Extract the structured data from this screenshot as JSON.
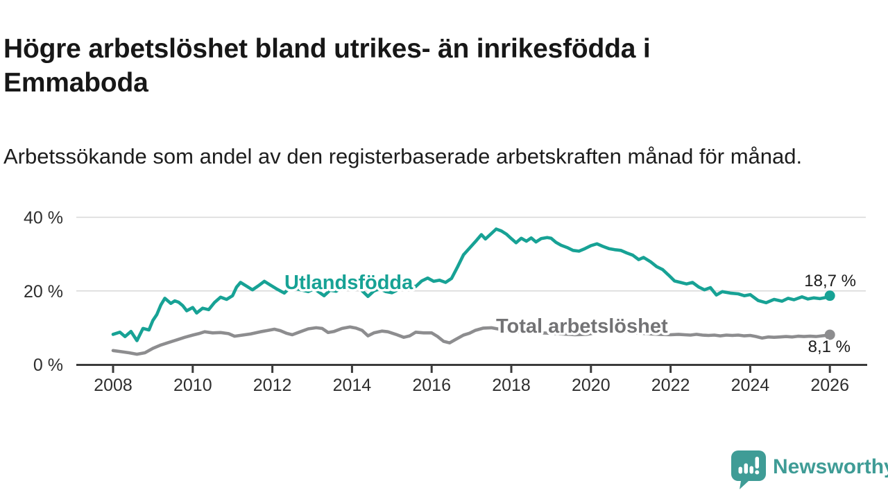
{
  "header": {
    "title": "Högre arbetslöshet bland utrikes- än inrikesfödda i Emmaboda",
    "subtitle": "Arbetssökande som andel av den registerbaserade arbetskraften månad för månad."
  },
  "branding": {
    "logo_text": "Newsworthy",
    "logo_color": "#3F9C96",
    "logo_mark": "speech-bubble-bar-chart-icon"
  },
  "colors": {
    "axis": "#3B3B3B",
    "grid": "#D7D7D7",
    "tick_text": "#2E2E2E",
    "annotation_text": "#1A1A1A",
    "background": "#FFFFFF"
  },
  "chart_data": {
    "type": "line",
    "title": "Högre arbetslöshet bland utrikes- än inrikesfödda i Emmaboda",
    "xlabel": "",
    "ylabel": "",
    "grid": "horizontal",
    "legend": "inline-labels",
    "x_axis": {
      "range": [
        2008,
        2026.1
      ],
      "tick_values": [
        2008,
        2010,
        2012,
        2014,
        2016,
        2018,
        2020,
        2022,
        2024,
        2026
      ],
      "tick_labels": [
        "2008",
        "2010",
        "2012",
        "2014",
        "2016",
        "2018",
        "2020",
        "2022",
        "2024",
        "2026"
      ]
    },
    "y_axis": {
      "range": [
        0,
        40
      ],
      "unit": "%",
      "tick_values": [
        0,
        20,
        40
      ],
      "tick_labels": [
        "0 %",
        "20 %",
        "40 %"
      ]
    },
    "series": [
      {
        "name": "Utlandsfödda",
        "label_text": "Utlandsfödda",
        "color": "#17A295",
        "label_color": "#17A295",
        "end_value": 18.7,
        "end_label": "18,7 %",
        "points": [
          [
            2008.0,
            8.2
          ],
          [
            2008.17,
            8.8
          ],
          [
            2008.3,
            7.6
          ],
          [
            2008.45,
            9.0
          ],
          [
            2008.6,
            6.5
          ],
          [
            2008.75,
            9.8
          ],
          [
            2008.9,
            9.4
          ],
          [
            2009.0,
            12.0
          ],
          [
            2009.1,
            13.6
          ],
          [
            2009.2,
            16.2
          ],
          [
            2009.3,
            18.0
          ],
          [
            2009.45,
            16.6
          ],
          [
            2009.55,
            17.3
          ],
          [
            2009.65,
            16.9
          ],
          [
            2009.75,
            16.0
          ],
          [
            2009.85,
            14.6
          ],
          [
            2010.0,
            15.5
          ],
          [
            2010.1,
            14.0
          ],
          [
            2010.25,
            15.3
          ],
          [
            2010.4,
            14.9
          ],
          [
            2010.55,
            16.9
          ],
          [
            2010.7,
            18.3
          ],
          [
            2010.85,
            17.7
          ],
          [
            2011.0,
            18.7
          ],
          [
            2011.1,
            21.0
          ],
          [
            2011.2,
            22.3
          ],
          [
            2011.35,
            21.3
          ],
          [
            2011.5,
            20.3
          ],
          [
            2011.65,
            21.4
          ],
          [
            2011.8,
            22.6
          ],
          [
            2011.95,
            21.6
          ],
          [
            2012.1,
            20.6
          ],
          [
            2012.3,
            19.4
          ],
          [
            2012.45,
            21.0
          ],
          [
            2012.6,
            20.6
          ],
          [
            2012.75,
            20.2
          ],
          [
            2012.9,
            19.8
          ],
          [
            2013.05,
            20.6
          ],
          [
            2013.3,
            18.7
          ],
          [
            2013.45,
            20.2
          ],
          [
            2013.6,
            19.9
          ],
          [
            2013.75,
            20.9
          ],
          [
            2013.9,
            20.6
          ],
          [
            2014.05,
            21.0
          ],
          [
            2014.2,
            20.6
          ],
          [
            2014.4,
            18.5
          ],
          [
            2014.55,
            20.0
          ],
          [
            2014.7,
            20.6
          ],
          [
            2014.85,
            19.8
          ],
          [
            2015.0,
            19.5
          ],
          [
            2015.15,
            20.3
          ],
          [
            2015.3,
            21.1
          ],
          [
            2015.45,
            21.4
          ],
          [
            2015.6,
            21.2
          ],
          [
            2015.75,
            22.7
          ],
          [
            2015.9,
            23.5
          ],
          [
            2016.05,
            22.6
          ],
          [
            2016.2,
            22.9
          ],
          [
            2016.35,
            22.3
          ],
          [
            2016.5,
            23.4
          ],
          [
            2016.65,
            26.5
          ],
          [
            2016.8,
            29.8
          ],
          [
            2016.95,
            31.6
          ],
          [
            2017.1,
            33.4
          ],
          [
            2017.25,
            35.3
          ],
          [
            2017.35,
            34.1
          ],
          [
            2017.5,
            35.6
          ],
          [
            2017.62,
            36.8
          ],
          [
            2017.75,
            36.3
          ],
          [
            2017.88,
            35.4
          ],
          [
            2018.0,
            34.2
          ],
          [
            2018.12,
            33.1
          ],
          [
            2018.25,
            34.3
          ],
          [
            2018.38,
            33.5
          ],
          [
            2018.5,
            34.4
          ],
          [
            2018.62,
            33.3
          ],
          [
            2018.75,
            34.2
          ],
          [
            2018.9,
            34.5
          ],
          [
            2019.0,
            34.3
          ],
          [
            2019.12,
            33.2
          ],
          [
            2019.25,
            32.4
          ],
          [
            2019.4,
            31.8
          ],
          [
            2019.55,
            31.0
          ],
          [
            2019.7,
            30.8
          ],
          [
            2019.85,
            31.5
          ],
          [
            2020.0,
            32.3
          ],
          [
            2020.15,
            32.8
          ],
          [
            2020.3,
            32.1
          ],
          [
            2020.45,
            31.5
          ],
          [
            2020.6,
            31.2
          ],
          [
            2020.75,
            31.0
          ],
          [
            2020.9,
            30.3
          ],
          [
            2021.05,
            29.7
          ],
          [
            2021.2,
            28.5
          ],
          [
            2021.32,
            29.1
          ],
          [
            2021.5,
            27.9
          ],
          [
            2021.65,
            26.6
          ],
          [
            2021.8,
            25.8
          ],
          [
            2021.95,
            24.3
          ],
          [
            2022.1,
            22.7
          ],
          [
            2022.25,
            22.3
          ],
          [
            2022.4,
            21.9
          ],
          [
            2022.55,
            22.3
          ],
          [
            2022.7,
            21.1
          ],
          [
            2022.85,
            20.3
          ],
          [
            2023.0,
            20.9
          ],
          [
            2023.15,
            18.9
          ],
          [
            2023.3,
            19.8
          ],
          [
            2023.5,
            19.4
          ],
          [
            2023.7,
            19.2
          ],
          [
            2023.85,
            18.7
          ],
          [
            2024.0,
            19.0
          ],
          [
            2024.2,
            17.4
          ],
          [
            2024.4,
            16.8
          ],
          [
            2024.6,
            17.7
          ],
          [
            2024.8,
            17.2
          ],
          [
            2024.95,
            18.0
          ],
          [
            2025.1,
            17.6
          ],
          [
            2025.3,
            18.4
          ],
          [
            2025.45,
            17.8
          ],
          [
            2025.6,
            18.1
          ],
          [
            2025.75,
            17.9
          ],
          [
            2025.9,
            18.2
          ],
          [
            2026.0,
            18.7
          ]
        ]
      },
      {
        "name": "Total arbetslöshet",
        "label_text": "Total arbetslöshet",
        "color": "#8D8D8F",
        "label_color": "#737375",
        "end_value": 8.1,
        "end_label": "8,1 %",
        "points": [
          [
            2008.0,
            3.8
          ],
          [
            2008.2,
            3.5
          ],
          [
            2008.4,
            3.2
          ],
          [
            2008.6,
            2.8
          ],
          [
            2008.8,
            3.2
          ],
          [
            2009.0,
            4.4
          ],
          [
            2009.2,
            5.3
          ],
          [
            2009.4,
            6.0
          ],
          [
            2009.6,
            6.7
          ],
          [
            2009.8,
            7.4
          ],
          [
            2010.0,
            8.0
          ],
          [
            2010.15,
            8.4
          ],
          [
            2010.3,
            8.9
          ],
          [
            2010.5,
            8.6
          ],
          [
            2010.7,
            8.7
          ],
          [
            2010.9,
            8.4
          ],
          [
            2011.05,
            7.7
          ],
          [
            2011.25,
            8.0
          ],
          [
            2011.45,
            8.3
          ],
          [
            2011.7,
            8.9
          ],
          [
            2011.9,
            9.3
          ],
          [
            2012.05,
            9.6
          ],
          [
            2012.2,
            9.2
          ],
          [
            2012.35,
            8.5
          ],
          [
            2012.5,
            8.1
          ],
          [
            2012.7,
            8.9
          ],
          [
            2012.9,
            9.7
          ],
          [
            2013.1,
            10.0
          ],
          [
            2013.25,
            9.8
          ],
          [
            2013.4,
            8.7
          ],
          [
            2013.55,
            9.0
          ],
          [
            2013.75,
            9.8
          ],
          [
            2013.95,
            10.2
          ],
          [
            2014.1,
            9.9
          ],
          [
            2014.25,
            9.3
          ],
          [
            2014.4,
            7.8
          ],
          [
            2014.55,
            8.6
          ],
          [
            2014.75,
            9.1
          ],
          [
            2014.9,
            8.9
          ],
          [
            2015.1,
            8.2
          ],
          [
            2015.3,
            7.4
          ],
          [
            2015.45,
            7.8
          ],
          [
            2015.6,
            8.8
          ],
          [
            2015.8,
            8.6
          ],
          [
            2016.0,
            8.6
          ],
          [
            2016.15,
            7.6
          ],
          [
            2016.3,
            6.3
          ],
          [
            2016.45,
            5.9
          ],
          [
            2016.6,
            6.8
          ],
          [
            2016.8,
            8.0
          ],
          [
            2016.95,
            8.5
          ],
          [
            2017.1,
            9.3
          ],
          [
            2017.3,
            9.9
          ],
          [
            2017.5,
            10.0
          ],
          [
            2017.7,
            9.6
          ],
          [
            2017.9,
            9.2
          ],
          [
            2018.1,
            9.0
          ],
          [
            2018.4,
            8.8
          ],
          [
            2018.7,
            8.6
          ],
          [
            2019.0,
            8.5
          ],
          [
            2019.3,
            8.3
          ],
          [
            2019.6,
            8.1
          ],
          [
            2019.9,
            8.2
          ],
          [
            2020.2,
            8.8
          ],
          [
            2020.5,
            9.2
          ],
          [
            2020.8,
            9.0
          ],
          [
            2021.1,
            8.7
          ],
          [
            2021.4,
            8.4
          ],
          [
            2021.7,
            8.2
          ],
          [
            2022.0,
            8.1
          ],
          [
            2022.2,
            8.2
          ],
          [
            2022.35,
            8.1
          ],
          [
            2022.5,
            8.0
          ],
          [
            2022.65,
            8.2
          ],
          [
            2022.8,
            8.0
          ],
          [
            2022.95,
            7.9
          ],
          [
            2023.1,
            8.0
          ],
          [
            2023.25,
            7.8
          ],
          [
            2023.4,
            8.0
          ],
          [
            2023.55,
            7.9
          ],
          [
            2023.7,
            8.0
          ],
          [
            2023.85,
            7.8
          ],
          [
            2024.0,
            7.9
          ],
          [
            2024.15,
            7.6
          ],
          [
            2024.3,
            7.2
          ],
          [
            2024.45,
            7.5
          ],
          [
            2024.6,
            7.4
          ],
          [
            2024.75,
            7.5
          ],
          [
            2024.9,
            7.6
          ],
          [
            2025.05,
            7.5
          ],
          [
            2025.2,
            7.7
          ],
          [
            2025.35,
            7.6
          ],
          [
            2025.5,
            7.7
          ],
          [
            2025.65,
            7.6
          ],
          [
            2025.8,
            7.8
          ],
          [
            2025.9,
            7.9
          ],
          [
            2026.0,
            8.1
          ]
        ]
      }
    ]
  }
}
